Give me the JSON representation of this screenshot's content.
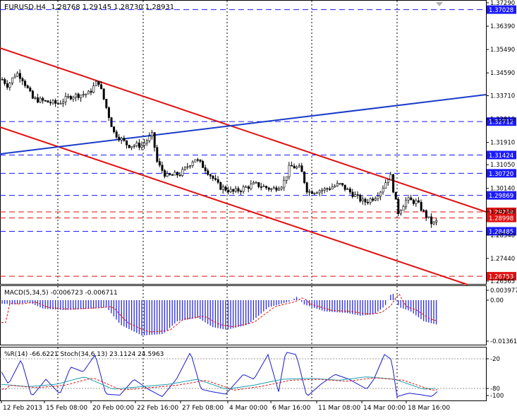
{
  "main_header": {
    "symbol": "EURUSD,H4",
    "ohlc": "1.28768 1.29145 1.28730 1.28931"
  },
  "price_axis": {
    "ticks": [
      "1.37290",
      "1.36390",
      "1.35490",
      "1.34590",
      "1.33710",
      "1.32810",
      "1.31910",
      "1.31050",
      "1.30140",
      "1.29240",
      "1.28340",
      "1.27440",
      "1.26565"
    ]
  },
  "hlines": [
    {
      "price": "1.37028",
      "type": "support-resistance",
      "style": "dashed",
      "color": "#1a1aff",
      "label_bg": "#1a1aff"
    },
    {
      "price": "1.32712",
      "type": "support-resistance",
      "style": "dashed",
      "color": "#1a1aff",
      "label_bg": "#1a1aff"
    },
    {
      "price": "1.31424",
      "type": "support-resistance",
      "style": "dashed",
      "color": "#1a1aff",
      "label_bg": "#1a1aff"
    },
    {
      "price": "1.30720",
      "type": "support-resistance",
      "style": "dashed",
      "color": "#1a1aff",
      "label_bg": "#1a1aff"
    },
    {
      "price": "1.29869",
      "type": "support-resistance",
      "style": "dashed",
      "color": "#1a1aff",
      "label_bg": "#1a1aff"
    },
    {
      "price": "1.29234",
      "type": "support-resistance",
      "style": "dashed",
      "color": "#e01010",
      "label_bg": "#e01010"
    },
    {
      "price": "1.28998",
      "type": "current-price",
      "style": "dashed",
      "color": "#e01010",
      "label_bg": "#e01010"
    },
    {
      "price": "1.28485",
      "type": "support-resistance",
      "style": "dashed",
      "color": "#1a1aff",
      "label_bg": "#1a1aff"
    },
    {
      "price": "1.26753",
      "type": "support-resistance",
      "style": "dashed",
      "color": "#e01010",
      "label_bg": "#e01010"
    }
  ],
  "macd": {
    "header": "MACD(5,34,5) -0.006723 -0.006711",
    "ticks": [
      "0.003977",
      "0.00",
      "-0.013614"
    ]
  },
  "wpr_stoch": {
    "header": "%R(14) -66.6221 Stoch(34,6,13) 23.1124 24.5963",
    "ticks": [
      "-20",
      "-80",
      "-100"
    ]
  },
  "time_axis": [
    "12 Feb 2013",
    "15 Feb 08:00",
    "20 Feb 00:00",
    "22 Feb 16:00",
    "27 Feb 08:00",
    "4 Mar 00:00",
    "6 Mar 16:00",
    "11 Mar 08:00",
    "14 Mar 00:00",
    "18 Mar 16:00"
  ],
  "colors": {
    "candle": "#000000",
    "hline_blue": "#1a1aff",
    "hline_red": "#e01010",
    "channel": "#e01010",
    "trendline": "#1a3cc8",
    "macd_hist": "#2a2ae0",
    "macd_signal": "#e01010",
    "wpr": "#1a1acc",
    "stoch_main": "#20a0b0",
    "stoch_signal": "#e01010"
  }
}
